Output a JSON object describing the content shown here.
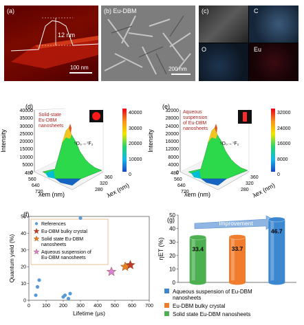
{
  "panel_a": {
    "label": "(a)",
    "height_annotation": "12 nm",
    "scale_bar": "100 nm"
  },
  "panel_b": {
    "label": "(b) Eu-DBM",
    "scale_bar": "200 nm"
  },
  "panel_c": {
    "label": "(c)",
    "maps": [
      "C",
      "O",
      "Eu"
    ]
  },
  "panel_d": {
    "label": "(d)",
    "annotation": "Solid-state\nEu-DBM\nnanosheets",
    "transition": "⁵D₀→⁷F₂",
    "z_label": "Intensity",
    "x_label": "λem (nm)",
    "y_label": "λex (nm)",
    "z_ticks": [
      "0",
      "5000",
      "10000",
      "15000",
      "20000",
      "25000",
      "30000",
      "35000",
      "40000"
    ],
    "x_ticks": [
      "480",
      "560",
      "640",
      "720"
    ],
    "y_ticks": [
      "280",
      "320",
      "360"
    ],
    "colorbar_ticks": [
      "40000",
      "30000",
      "20000",
      "10000",
      "0"
    ]
  },
  "panel_e": {
    "label": "(e)",
    "annotation": "Aqueous\nsuspension\nof Eu-DBM\nnanosheets",
    "transition": "⁵D₀→⁷F₂",
    "z_label": "Intensity",
    "x_label": "λem (nm)",
    "y_label": "λex (nm)",
    "z_ticks": [
      "0",
      "4000",
      "8000",
      "12000",
      "16000",
      "20000",
      "24000",
      "28000",
      "32000"
    ],
    "x_ticks": [
      "480",
      "560",
      "640",
      "720"
    ],
    "y_ticks": [
      "280",
      "320",
      "360"
    ],
    "colorbar_ticks": [
      "32000",
      "24000",
      "16000",
      "8000",
      "0"
    ]
  },
  "chart_data": [
    {
      "type": "scatter",
      "panel": "(f)",
      "xlabel": "Lifetime (μs)",
      "ylabel": "Quantum yield (%)",
      "xlim": [
        0,
        700
      ],
      "ylim": [
        0,
        50
      ],
      "x_ticks": [
        "0",
        "100",
        "200",
        "300",
        "400",
        "500",
        "600",
        "700"
      ],
      "y_ticks": [
        "0",
        "10",
        "20",
        "30",
        "40",
        "50"
      ],
      "legend_position": "top-left",
      "series": [
        {
          "name": "References",
          "color": "#5b9bd5",
          "marker": "circle",
          "points": [
            [
              40,
              3
            ],
            [
              50,
              8
            ],
            [
              60,
              12
            ],
            [
              200,
              2
            ],
            [
              210,
              3
            ],
            [
              240,
              4
            ],
            [
              230,
              1
            ],
            [
              300,
              49
            ]
          ]
        },
        {
          "name": "Eu-DBM bulky crystal",
          "color": "#c0392b",
          "marker": "star",
          "points": [
            [
              590,
              21
            ]
          ]
        },
        {
          "name": "Solid state Eu-DBM nanosheets",
          "color": "#e67e22",
          "marker": "star",
          "points": [
            [
              560,
              20
            ]
          ]
        },
        {
          "name": "Aqueous suspension of Eu-DBM nanosheets",
          "color": "#d980d9",
          "marker": "star",
          "points": [
            [
              480,
              17
            ]
          ]
        }
      ]
    },
    {
      "type": "bar",
      "panel": "(g)",
      "ylabel": "ηET (%)",
      "ylim": [
        0,
        50
      ],
      "y_ticks": [
        "0",
        "10",
        "20",
        "30",
        "40",
        "50"
      ],
      "arrow_label": "Improvement",
      "categories": [
        "Solid state Eu-DBM nanosheets",
        "Eu-DBM bulky crystal",
        "Aqueous suspension of Eu-DBM nanosheets"
      ],
      "values": [
        33.4,
        33.7,
        46.7
      ],
      "value_labels": [
        "33.4",
        "33.7",
        "46.7"
      ],
      "colors": [
        "#4caf50",
        "#f07c2c",
        "#3b87d0"
      ],
      "legend": [
        {
          "label": "Aqueous suspension of Eu-DBM\nnanosheets",
          "color": "#3b87d0"
        },
        {
          "label": "Eu-DBM bulky crystal",
          "color": "#f07c2c"
        },
        {
          "label": "Solid state Eu-DBM nanosheets",
          "color": "#4caf50"
        }
      ]
    }
  ]
}
